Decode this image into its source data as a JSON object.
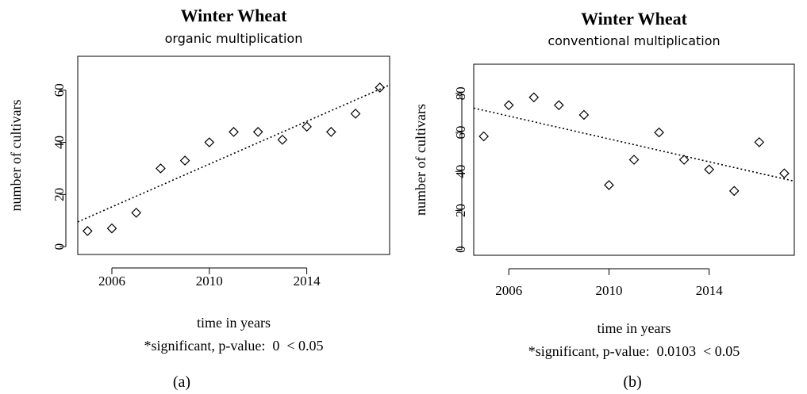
{
  "chart_data": [
    {
      "type": "scatter",
      "title": "Winter Wheat",
      "subtitle": "organic multiplication",
      "xlabel": "time in years",
      "ylabel": "number of cultivars",
      "note": "*significant, p-value:  0  < 0.05",
      "caption": "(a)",
      "xlim": [
        2004.6,
        2017.4
      ],
      "ylim": [
        -3,
        73
      ],
      "xticks": [
        2006,
        2010,
        2014
      ],
      "yticks": [
        0,
        20,
        40,
        60
      ],
      "grid": false,
      "trendline": {
        "style": "dotted",
        "x": [
          2004.6,
          2017.4
        ],
        "y": [
          9.5,
          62
        ]
      },
      "series": [
        {
          "x": [
            2005,
            2006,
            2007,
            2008,
            2009,
            2010,
            2011,
            2012,
            2013,
            2014,
            2015,
            2016,
            2017
          ],
          "y": [
            6,
            7,
            13,
            30,
            33,
            40,
            44,
            44,
            41,
            46,
            44,
            51,
            61
          ]
        }
      ]
    },
    {
      "type": "scatter",
      "title": "Winter Wheat",
      "subtitle": "conventional multiplication",
      "xlabel": "time in years",
      "ylabel": "number of cultivars",
      "note": "*significant, p-value:  0.0103  < 0.05",
      "caption": "(b)",
      "xlim": [
        2004.6,
        2017.4
      ],
      "ylim": [
        -3,
        95
      ],
      "xticks": [
        2006,
        2010,
        2014
      ],
      "yticks": [
        0,
        20,
        40,
        60,
        80
      ],
      "grid": false,
      "trendline": {
        "style": "dotted",
        "x": [
          2004.6,
          2017.4
        ],
        "y": [
          72.5,
          35
        ]
      },
      "series": [
        {
          "x": [
            2005,
            2006,
            2007,
            2008,
            2009,
            2010,
            2011,
            2012,
            2013,
            2014,
            2015,
            2016,
            2017
          ],
          "y": [
            58,
            74,
            78,
            74,
            69,
            33,
            46,
            60,
            46,
            41,
            30,
            55,
            39
          ]
        }
      ]
    }
  ]
}
